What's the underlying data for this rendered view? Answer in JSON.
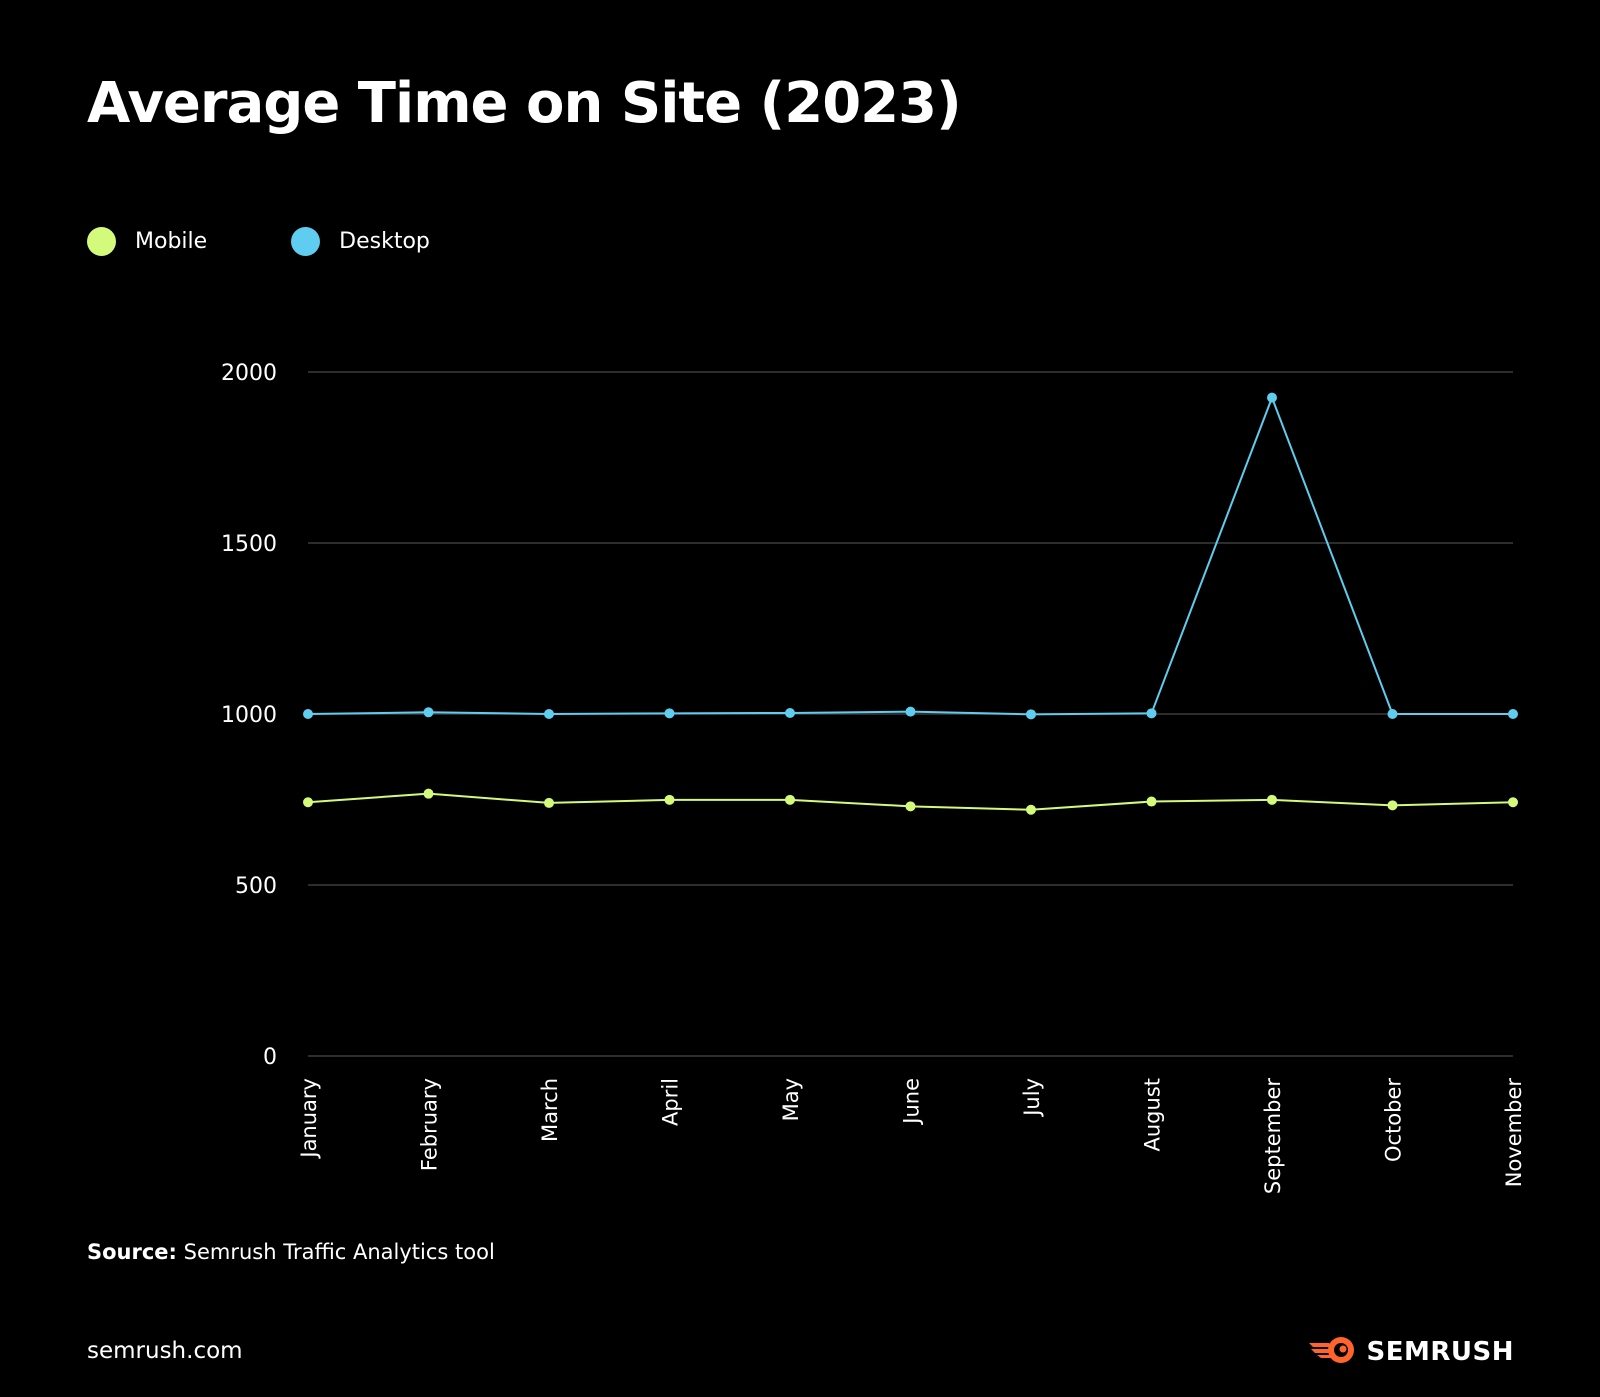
{
  "colors": {
    "background": "#000000",
    "mobile": "#d4fa7c",
    "desktop": "#5fcdef",
    "grid": "#3c3c3c",
    "text": "#ffffff",
    "brand": "#ff642d"
  },
  "footer": {
    "source_label": "Source:",
    "source_text": "Semrush Traffic Analytics tool",
    "url": "semrush.com",
    "brand_name": "SEMRUSH",
    "brand_icon": "semrush-fire-logo-icon"
  },
  "chart_data": {
    "type": "line",
    "title": "Average Time on Site (2023)",
    "xlabel": "",
    "ylabel": "",
    "categories": [
      "January",
      "February",
      "March",
      "April",
      "May",
      "June",
      "July",
      "August",
      "September",
      "October",
      "November"
    ],
    "series": [
      {
        "name": "Mobile",
        "color": "#d4fa7c",
        "values": [
          742,
          767,
          740,
          749,
          749,
          730,
          720,
          744,
          749,
          733,
          742
        ]
      },
      {
        "name": "Desktop",
        "color": "#5fcdef",
        "values": [
          1000,
          1005,
          1000,
          1002,
          1003,
          1007,
          999,
          1002,
          1925,
          1000,
          1000
        ]
      }
    ],
    "ylim": [
      0,
      2000
    ],
    "yticks": [
      0,
      500,
      1000,
      1500,
      2000
    ],
    "grid": true,
    "legend_position": "top-left"
  }
}
